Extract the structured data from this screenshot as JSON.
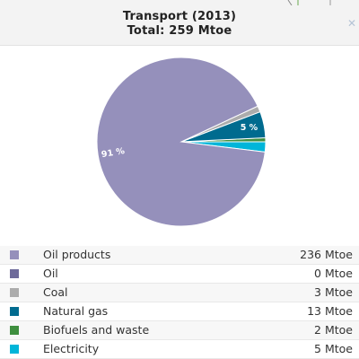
{
  "header": {
    "title": "Transport (2013)",
    "subtitle": "Total: 259 Mtoe",
    "close_icon": "close-icon"
  },
  "colors": {
    "header_bg": "#f3f3f3",
    "close": "#b5c4d6"
  },
  "chart_data": {
    "type": "pie",
    "title": "Transport (2013)",
    "subtitle": "Total: 259 Mtoe",
    "unit": "Mtoe",
    "slices": [
      {
        "name": "Oil products",
        "value": 236,
        "value_label": "236 Mtoe",
        "color": "#9590bb",
        "pct_label": "91 %"
      },
      {
        "name": "Oil",
        "value": 0,
        "value_label": "0 Mtoe",
        "color": "#6e6a9a",
        "pct_label": ""
      },
      {
        "name": "Coal",
        "value": 3,
        "value_label": "3 Mtoe",
        "color": "#acacac",
        "pct_label": ""
      },
      {
        "name": "Natural gas",
        "value": 13,
        "value_label": "13 Mtoe",
        "color": "#006b8f",
        "pct_label": "5 %"
      },
      {
        "name": "Biofuels and waste",
        "value": 2,
        "value_label": "2 Mtoe",
        "color": "#3f8f3f",
        "pct_label": ""
      },
      {
        "name": "Electricity",
        "value": 5,
        "value_label": "5 Mtoe",
        "color": "#00b5d9",
        "pct_label": ""
      }
    ],
    "legend_position": "bottom"
  }
}
